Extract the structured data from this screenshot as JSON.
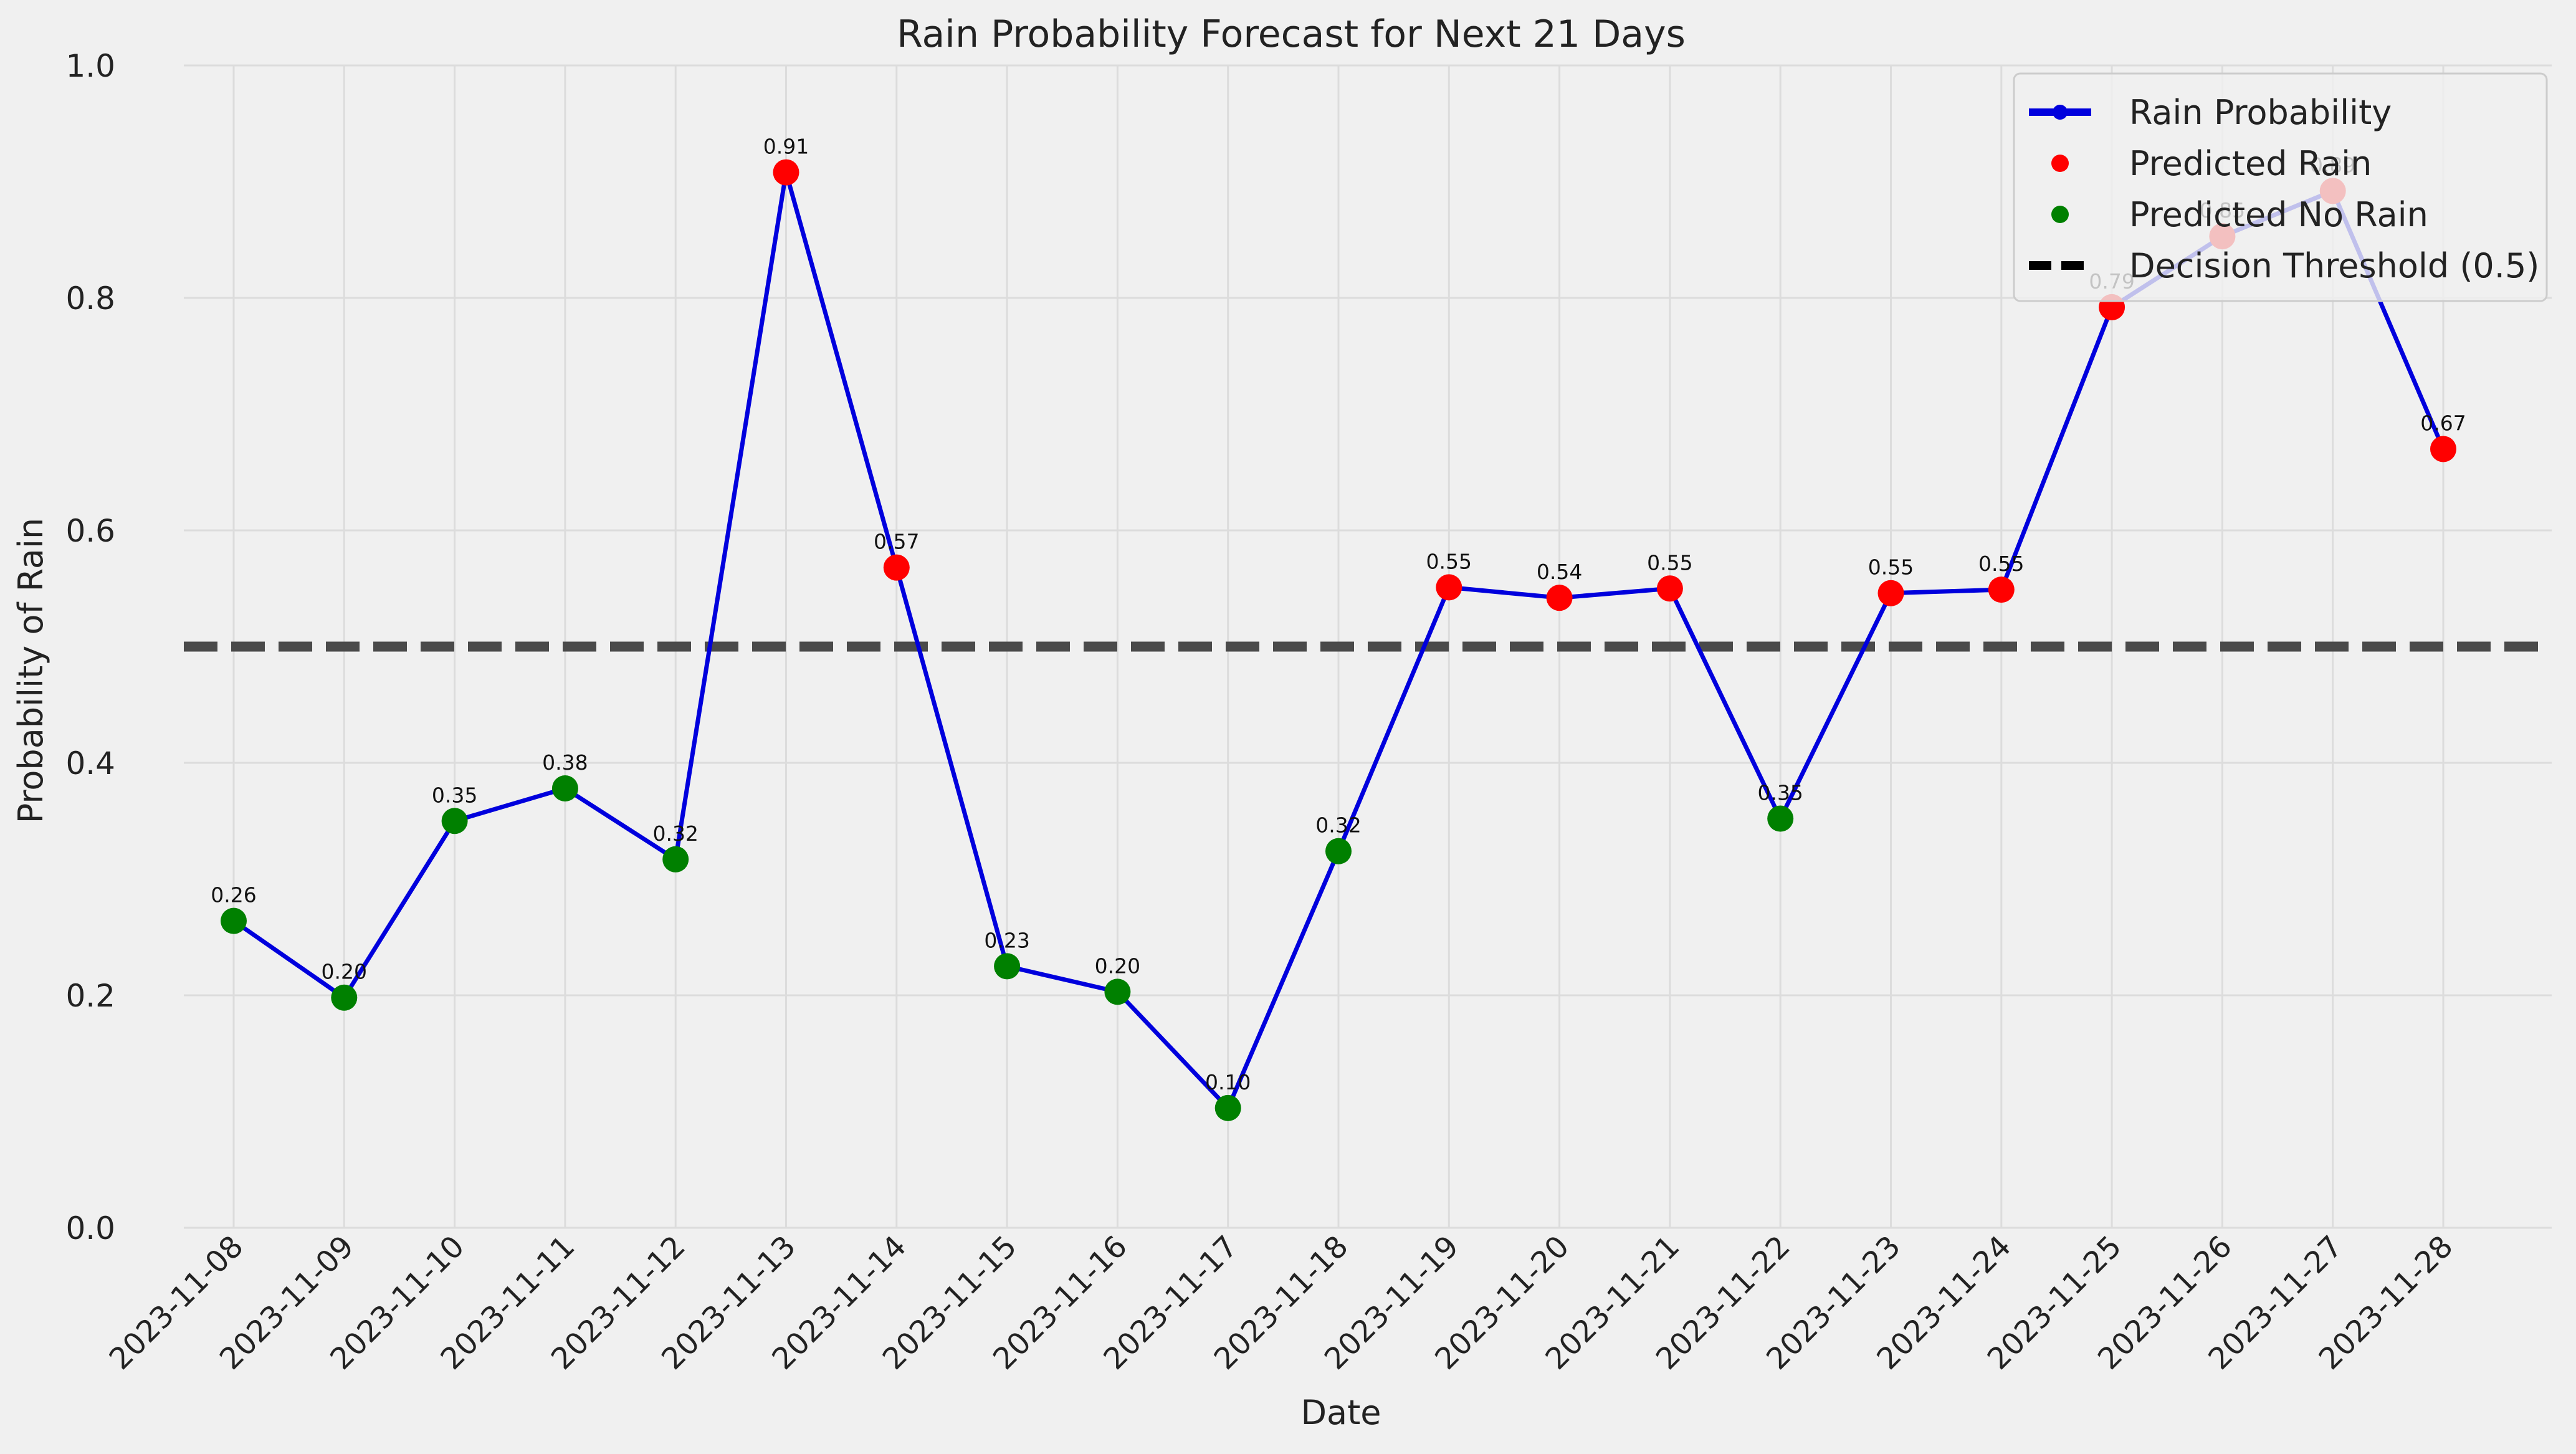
{
  "chart_data": {
    "type": "line",
    "title": "Rain Probability Forecast for Next 21 Days",
    "xlabel": "Date",
    "ylabel": "Probability of Rain",
    "ylim": [
      0,
      1.0
    ],
    "yticks": [
      "0.0",
      "0.2",
      "0.4",
      "0.6",
      "0.8",
      "1.0"
    ],
    "grid": true,
    "legend_position": "top-right",
    "threshold": 0.5,
    "colors": {
      "line": "#0000dd",
      "rain": "#ff0000",
      "no_rain": "#008000",
      "threshold": "#4a4a4a"
    },
    "x": [
      "2023-11-08",
      "2023-11-09",
      "2023-11-10",
      "2023-11-11",
      "2023-11-12",
      "2023-11-13",
      "2023-11-14",
      "2023-11-15",
      "2023-11-16",
      "2023-11-17",
      "2023-11-18",
      "2023-11-19",
      "2023-11-20",
      "2023-11-21",
      "2023-11-22",
      "2023-11-23",
      "2023-11-24",
      "2023-11-25",
      "2023-11-26",
      "2023-11-27",
      "2023-11-28"
    ],
    "series": [
      {
        "name": "Rain Probability",
        "values": [
          0.264,
          0.198,
          0.35,
          0.378,
          0.317,
          0.908,
          0.568,
          0.225,
          0.203,
          0.103,
          0.324,
          0.551,
          0.542,
          0.55,
          0.352,
          0.546,
          0.549,
          0.792,
          0.853,
          0.892,
          0.67
        ]
      }
    ],
    "point_labels": [
      "0.26",
      "0.20",
      "0.35",
      "0.38",
      "0.32",
      "0.91",
      "0.57",
      "0.23",
      "0.20",
      "0.10",
      "0.32",
      "0.55",
      "0.54",
      "0.55",
      "0.35",
      "0.55",
      "0.55",
      "0.79",
      "0.85",
      "0.89",
      "0.67"
    ],
    "legend": [
      "Rain Probability",
      "Predicted Rain",
      "Predicted No Rain",
      "Decision Threshold (0.5)"
    ]
  }
}
